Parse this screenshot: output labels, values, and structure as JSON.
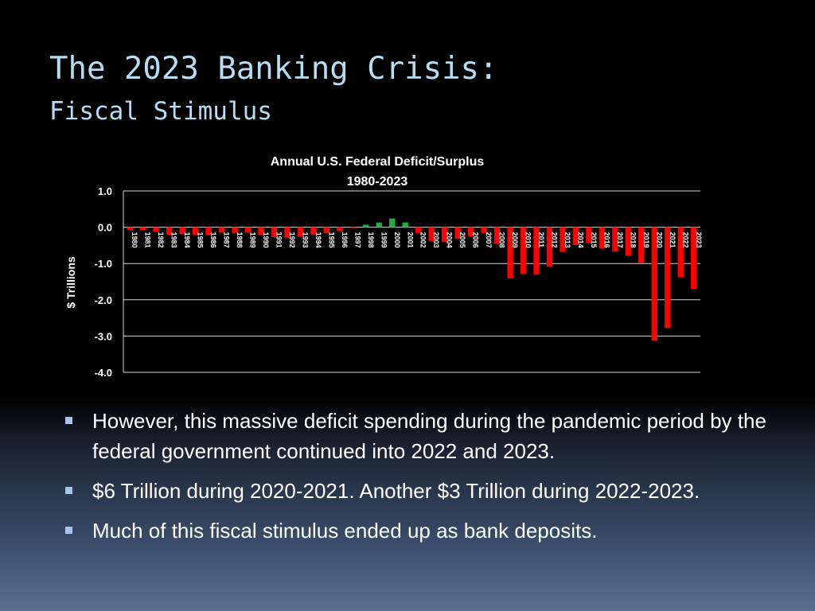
{
  "slide": {
    "title": "The 2023 Banking Crisis:",
    "subtitle": "Fiscal Stimulus"
  },
  "bullets": [
    "However, this massive deficit spending during the pandemic period by the federal government continued into 2022 and 2023.",
    "$6 Trillion during 2020-2021. Another $3 Trillion during 2022-2023.",
    "Much of this fiscal stimulus ended up as bank deposits."
  ],
  "colors": {
    "deficit": "#ff0000",
    "surplus": "#22aa44",
    "title": "#b8dcf2"
  },
  "chart_data": {
    "type": "bar",
    "title": "Annual U.S. Federal Deficit/Surplus",
    "subtitle": "1980-2023",
    "ylabel": "$ Trillions",
    "xlabel": "",
    "ylim": [
      -4.0,
      1.0
    ],
    "yticks": [
      "1.0",
      "0.0",
      "-1.0",
      "-2.0",
      "-3.0",
      "-4.0"
    ],
    "grid": true,
    "legend": "none",
    "categories": [
      "1980",
      "1981",
      "1982",
      "1983",
      "1984",
      "1985",
      "1986",
      "1987",
      "1988",
      "1989",
      "1990",
      "1991",
      "1992",
      "1993",
      "1994",
      "1995",
      "1996",
      "1997",
      "1998",
      "1999",
      "2000",
      "2001",
      "2002",
      "2003",
      "2004",
      "2005",
      "2006",
      "2007",
      "2008",
      "2009",
      "2010",
      "2011",
      "2012",
      "2013",
      "2014",
      "2015",
      "2016",
      "2017",
      "2018",
      "2019",
      "2020",
      "2021",
      "2022",
      "2023"
    ],
    "values": [
      -0.07,
      -0.08,
      -0.13,
      -0.21,
      -0.19,
      -0.21,
      -0.22,
      -0.15,
      -0.16,
      -0.15,
      -0.22,
      -0.27,
      -0.29,
      -0.26,
      -0.2,
      -0.16,
      -0.11,
      -0.02,
      0.07,
      0.13,
      0.24,
      0.13,
      -0.16,
      -0.38,
      -0.41,
      -0.32,
      -0.25,
      -0.16,
      -0.46,
      -1.41,
      -1.29,
      -1.3,
      -1.08,
      -0.68,
      -0.49,
      -0.44,
      -0.59,
      -0.67,
      -0.78,
      -0.98,
      -3.13,
      -2.78,
      -1.38,
      -1.7
    ]
  }
}
